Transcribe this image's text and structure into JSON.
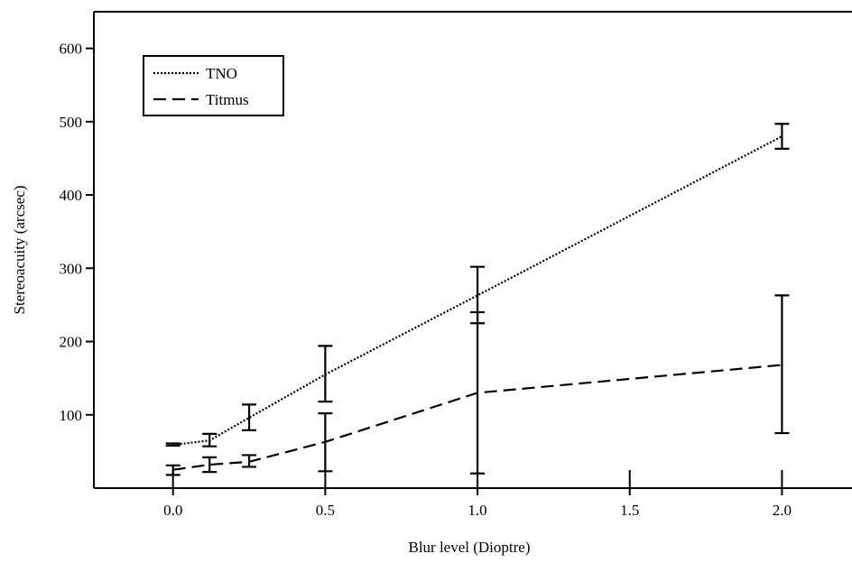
{
  "chart_data": {
    "type": "line",
    "title": "",
    "xlabel": "Blur level (Dioptre)",
    "ylabel": "Stereoacuity (arcsec)",
    "xlim": [
      -0.26,
      2.23
    ],
    "ylim": [
      0,
      650
    ],
    "x_ticks": [
      {
        "value": 0.0,
        "label": "0.0"
      },
      {
        "value": 0.5,
        "label": "0.5"
      },
      {
        "value": 1.0,
        "label": "1.0"
      },
      {
        "value": 1.5,
        "label": "1.5"
      },
      {
        "value": 2.0,
        "label": "2.0"
      }
    ],
    "y_ticks": [
      {
        "value": 100,
        "label": "100"
      },
      {
        "value": 200,
        "label": "200"
      },
      {
        "value": 300,
        "label": "300"
      },
      {
        "value": 400,
        "label": "400"
      },
      {
        "value": 500,
        "label": "500"
      },
      {
        "value": 600,
        "label": "600"
      }
    ],
    "grid": false,
    "legend_position": "top-left",
    "series": [
      {
        "name": "TNO",
        "line_style": "dotted",
        "color": "#000000",
        "points": [
          {
            "x": 0.0,
            "y": 59,
            "err_low": 58,
            "err_high": 61
          },
          {
            "x": 0.12,
            "y": 65,
            "err_low": 57,
            "err_high": 74
          },
          {
            "x": 0.25,
            "y": 96,
            "err_low": 79,
            "err_high": 114
          },
          {
            "x": 0.5,
            "y": 155,
            "err_low": 118,
            "err_high": 194
          },
          {
            "x": 1.0,
            "y": 263,
            "err_low": 225,
            "err_high": 302
          },
          {
            "x": 2.0,
            "y": 480,
            "err_low": 463,
            "err_high": 497
          }
        ]
      },
      {
        "name": "Titmus",
        "line_style": "dashed",
        "color": "#000000",
        "points": [
          {
            "x": 0.0,
            "y": 25,
            "err_low": 18,
            "err_high": 31
          },
          {
            "x": 0.12,
            "y": 32,
            "err_low": 22,
            "err_high": 42
          },
          {
            "x": 0.25,
            "y": 36,
            "err_low": 29,
            "err_high": 45
          },
          {
            "x": 0.5,
            "y": 63,
            "err_low": 23,
            "err_high": 102
          },
          {
            "x": 1.0,
            "y": 130,
            "err_low": 20,
            "err_high": 240
          },
          {
            "x": 2.0,
            "y": 168,
            "err_low": 75,
            "err_high": 263
          }
        ]
      }
    ]
  }
}
